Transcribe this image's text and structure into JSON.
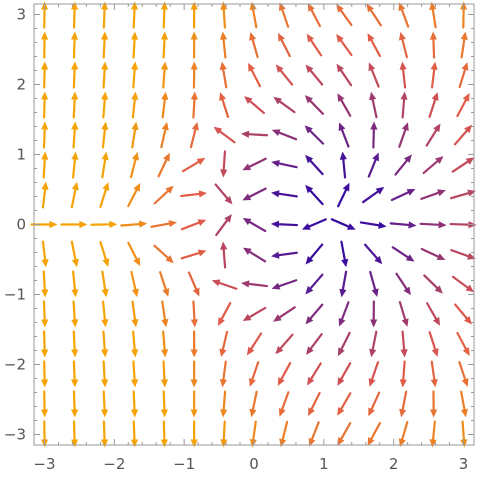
{
  "chart_data": {
    "type": "vector_field",
    "title": "",
    "xlabel": "",
    "ylabel": "",
    "xlim": [
      -3.15,
      3.15
    ],
    "ylim": [
      -3.15,
      3.15
    ],
    "xticks": [
      -3,
      -2,
      -1,
      0,
      1,
      2,
      3
    ],
    "yticks": [
      -3,
      -2,
      -1,
      0,
      1,
      2,
      3
    ],
    "xtick_labels": [
      "−3",
      "−2",
      "−1",
      "0",
      "1",
      "2",
      "3"
    ],
    "ytick_labels": [
      "−3",
      "−2",
      "−1",
      "0",
      "1",
      "2",
      "3"
    ],
    "grid": false,
    "field": "vector field on a 15 by 15 grid over [-3,3] x [-3,3]; arrows radiate outward from a source near (1, 0.1) and a pole/sink near (-0.2, 0.2); arrows on the left point nearly vertically (up in the upper half, down in the lower half)",
    "grid_points": {
      "x_start": -3,
      "x_end": 3,
      "y_start": -3,
      "y_end": 3,
      "count": 15
    },
    "singularities": [
      {
        "kind": "source",
        "x": 1.0,
        "y": 0.1
      },
      {
        "kind": "pole",
        "x": -0.2,
        "y": 0.2
      }
    ],
    "colors": {
      "slow": "#f5a306",
      "mid": "#e0584c",
      "fast": "#3a0da0",
      "frame": "#9a9a9a",
      "tick_text": "#555555"
    }
  }
}
